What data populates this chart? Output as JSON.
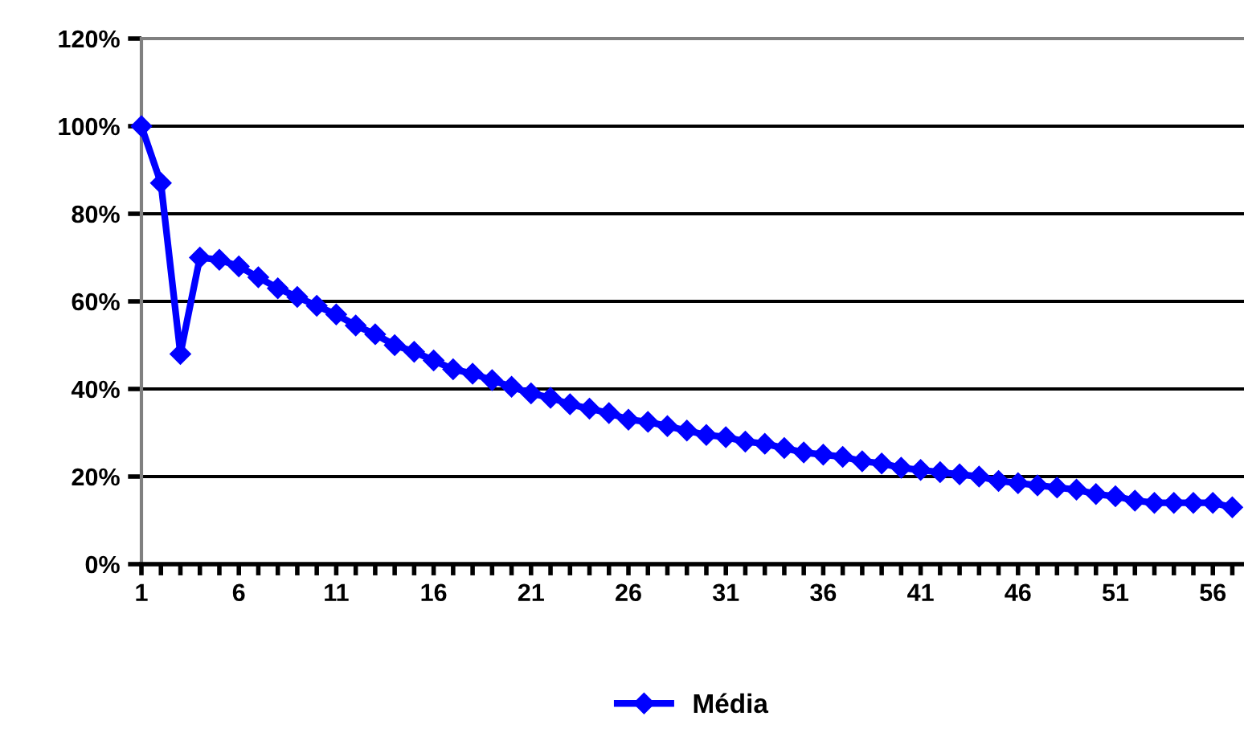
{
  "chart_data": {
    "type": "line",
    "categories": [
      "1",
      null,
      null,
      null,
      null,
      "6",
      null,
      null,
      null,
      null,
      "11",
      null,
      null,
      null,
      null,
      "16",
      null,
      null,
      null,
      null,
      "21",
      null,
      null,
      null,
      null,
      "26",
      null,
      null,
      null,
      null,
      "31",
      null,
      null,
      null,
      null,
      "36",
      null,
      null,
      null,
      null,
      "41",
      null,
      null,
      null,
      null,
      "46",
      null,
      null,
      null,
      null,
      "51",
      null,
      null,
      null,
      null,
      "56",
      null
    ],
    "series": [
      {
        "name": "Média",
        "color": "#0000ff",
        "values": [
          100,
          87,
          48,
          70,
          69.5,
          68,
          65.5,
          63,
          61,
          59,
          57,
          54.5,
          52.5,
          50,
          48.5,
          46.5,
          44.5,
          43.5,
          42,
          40.5,
          39,
          38,
          36.5,
          35.5,
          34.5,
          33,
          32.5,
          31.5,
          30.5,
          29.5,
          29,
          28,
          27.5,
          26.5,
          25.5,
          25,
          24.5,
          23.5,
          23,
          22,
          21.5,
          21,
          20.5,
          20,
          19,
          18.5,
          18,
          17.5,
          17,
          16,
          15.5,
          14.5,
          14,
          14,
          14,
          14,
          13
        ]
      }
    ],
    "ylim": [
      0,
      120
    ],
    "yticks": [
      {
        "value": 0,
        "label": "0%"
      },
      {
        "value": 20,
        "label": "20%"
      },
      {
        "value": 40,
        "label": "40%"
      },
      {
        "value": 60,
        "label": "60%"
      },
      {
        "value": 80,
        "label": "80%"
      },
      {
        "value": 100,
        "label": "100%"
      },
      {
        "value": 120,
        "label": "120%"
      }
    ],
    "grid": "y",
    "legend": "bottom",
    "marker": "diamond",
    "line_style": "solid"
  }
}
